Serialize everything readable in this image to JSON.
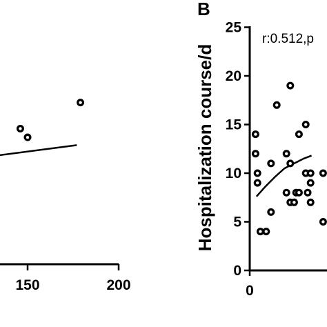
{
  "chart_data": [
    {
      "type": "scatter",
      "panel_label": "",
      "xlabel": "",
      "ylabel": "",
      "xlim": [
        100,
        200
      ],
      "x_ticks": [
        150,
        200
      ],
      "x_tick_labels": [
        "150",
        "200"
      ],
      "points": [
        {
          "x": 146,
          "y": 15.6
        },
        {
          "x": 150,
          "y": 14.6
        },
        {
          "x": 179,
          "y": 18.6
        }
      ],
      "fit_line": [
        {
          "x": 100,
          "y": 11.6
        },
        {
          "x": 177,
          "y": 13.7
        }
      ],
      "annotation": ""
    },
    {
      "type": "scatter",
      "panel_label": "B",
      "xlabel": "",
      "ylabel": "Hospitalization course/d",
      "xlim": [
        0,
        6
      ],
      "ylim": [
        0,
        25
      ],
      "x_ticks": [
        0
      ],
      "x_tick_labels": [
        "0"
      ],
      "y_ticks": [
        0,
        5,
        10,
        15,
        20,
        25
      ],
      "y_tick_labels": [
        "0",
        "5",
        "10",
        "15",
        "20",
        "25"
      ],
      "points": [
        {
          "x": 0.3,
          "y": 14
        },
        {
          "x": 0.3,
          "y": 12
        },
        {
          "x": 0.4,
          "y": 10
        },
        {
          "x": 0.4,
          "y": 9
        },
        {
          "x": 0.55,
          "y": 4
        },
        {
          "x": 0.85,
          "y": 4
        },
        {
          "x": 1.1,
          "y": 6
        },
        {
          "x": 1.1,
          "y": 11
        },
        {
          "x": 1.4,
          "y": 17
        },
        {
          "x": 1.9,
          "y": 12
        },
        {
          "x": 1.9,
          "y": 8
        },
        {
          "x": 2.1,
          "y": 19
        },
        {
          "x": 2.1,
          "y": 7
        },
        {
          "x": 2.1,
          "y": 11
        },
        {
          "x": 2.3,
          "y": 7
        },
        {
          "x": 2.4,
          "y": 8
        },
        {
          "x": 2.55,
          "y": 8
        },
        {
          "x": 2.55,
          "y": 14
        },
        {
          "x": 2.9,
          "y": 10
        },
        {
          "x": 2.9,
          "y": 15
        },
        {
          "x": 3.0,
          "y": 8
        },
        {
          "x": 3.15,
          "y": 10
        },
        {
          "x": 3.15,
          "y": 9
        },
        {
          "x": 3.15,
          "y": 7
        },
        {
          "x": 3.8,
          "y": 10
        },
        {
          "x": 3.8,
          "y": 5
        }
      ],
      "fit_line": [
        {
          "x": 0.35,
          "y": 7.6
        },
        {
          "x": 0.8,
          "y": 8.6
        },
        {
          "x": 1.3,
          "y": 9.6
        },
        {
          "x": 1.8,
          "y": 10.5
        },
        {
          "x": 2.3,
          "y": 11.0
        },
        {
          "x": 2.8,
          "y": 11.5
        },
        {
          "x": 3.2,
          "y": 11.8
        }
      ],
      "annotation": "r:0.512,p"
    }
  ]
}
